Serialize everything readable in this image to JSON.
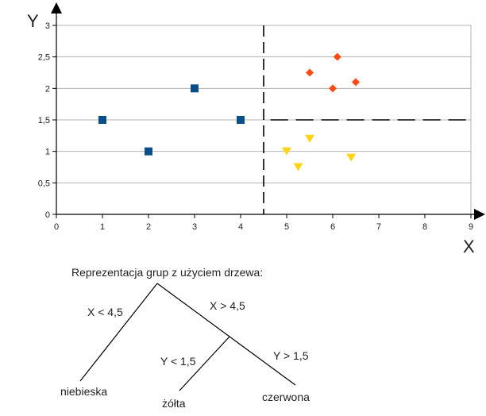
{
  "chart_data": {
    "type": "scatter",
    "x_axis_label": "X",
    "y_axis_label": "Y",
    "xlim": [
      0,
      9
    ],
    "ylim": [
      0,
      3
    ],
    "x_ticks": [
      "0",
      "1",
      "2",
      "3",
      "4",
      "5",
      "6",
      "7",
      "8",
      "9"
    ],
    "y_ticks": [
      "0",
      "0,5",
      "1",
      "1,5",
      "2",
      "2,5",
      "3"
    ],
    "grid": "horizontal",
    "series": [
      {
        "marker": "square",
        "color": "#0b4f8a",
        "points": [
          [
            1,
            1.5
          ],
          [
            2,
            1.0
          ],
          [
            3,
            2.0
          ],
          [
            4,
            1.5
          ]
        ]
      },
      {
        "marker": "diamond",
        "color": "#ff4a14",
        "points": [
          [
            5.5,
            2.25
          ],
          [
            6.1,
            2.5
          ],
          [
            6.0,
            2.0
          ],
          [
            6.5,
            2.1
          ]
        ]
      },
      {
        "marker": "triangle-down",
        "color": "#ffd316",
        "points": [
          [
            5.0,
            1.0
          ],
          [
            5.25,
            0.75
          ],
          [
            5.5,
            1.2
          ],
          [
            6.4,
            0.9
          ]
        ]
      }
    ],
    "split_lines": [
      {
        "orientation": "vertical",
        "x": 4.5,
        "y_range": [
          0,
          3
        ]
      },
      {
        "orientation": "horizontal",
        "y": 1.5,
        "x_range": [
          4.65,
          9
        ]
      }
    ]
  },
  "tree": {
    "title": "Reprezentacja grup z użyciem drzewa:",
    "edge_left_label": "X < 4,5",
    "edge_right_label": "X > 4,5",
    "edge_sub_left_label": "Y < 1,5",
    "edge_sub_right_label": "Y > 1,5",
    "leaf_left": "niebieska",
    "leaf_middle": "żółta",
    "leaf_right": "czerwona"
  }
}
